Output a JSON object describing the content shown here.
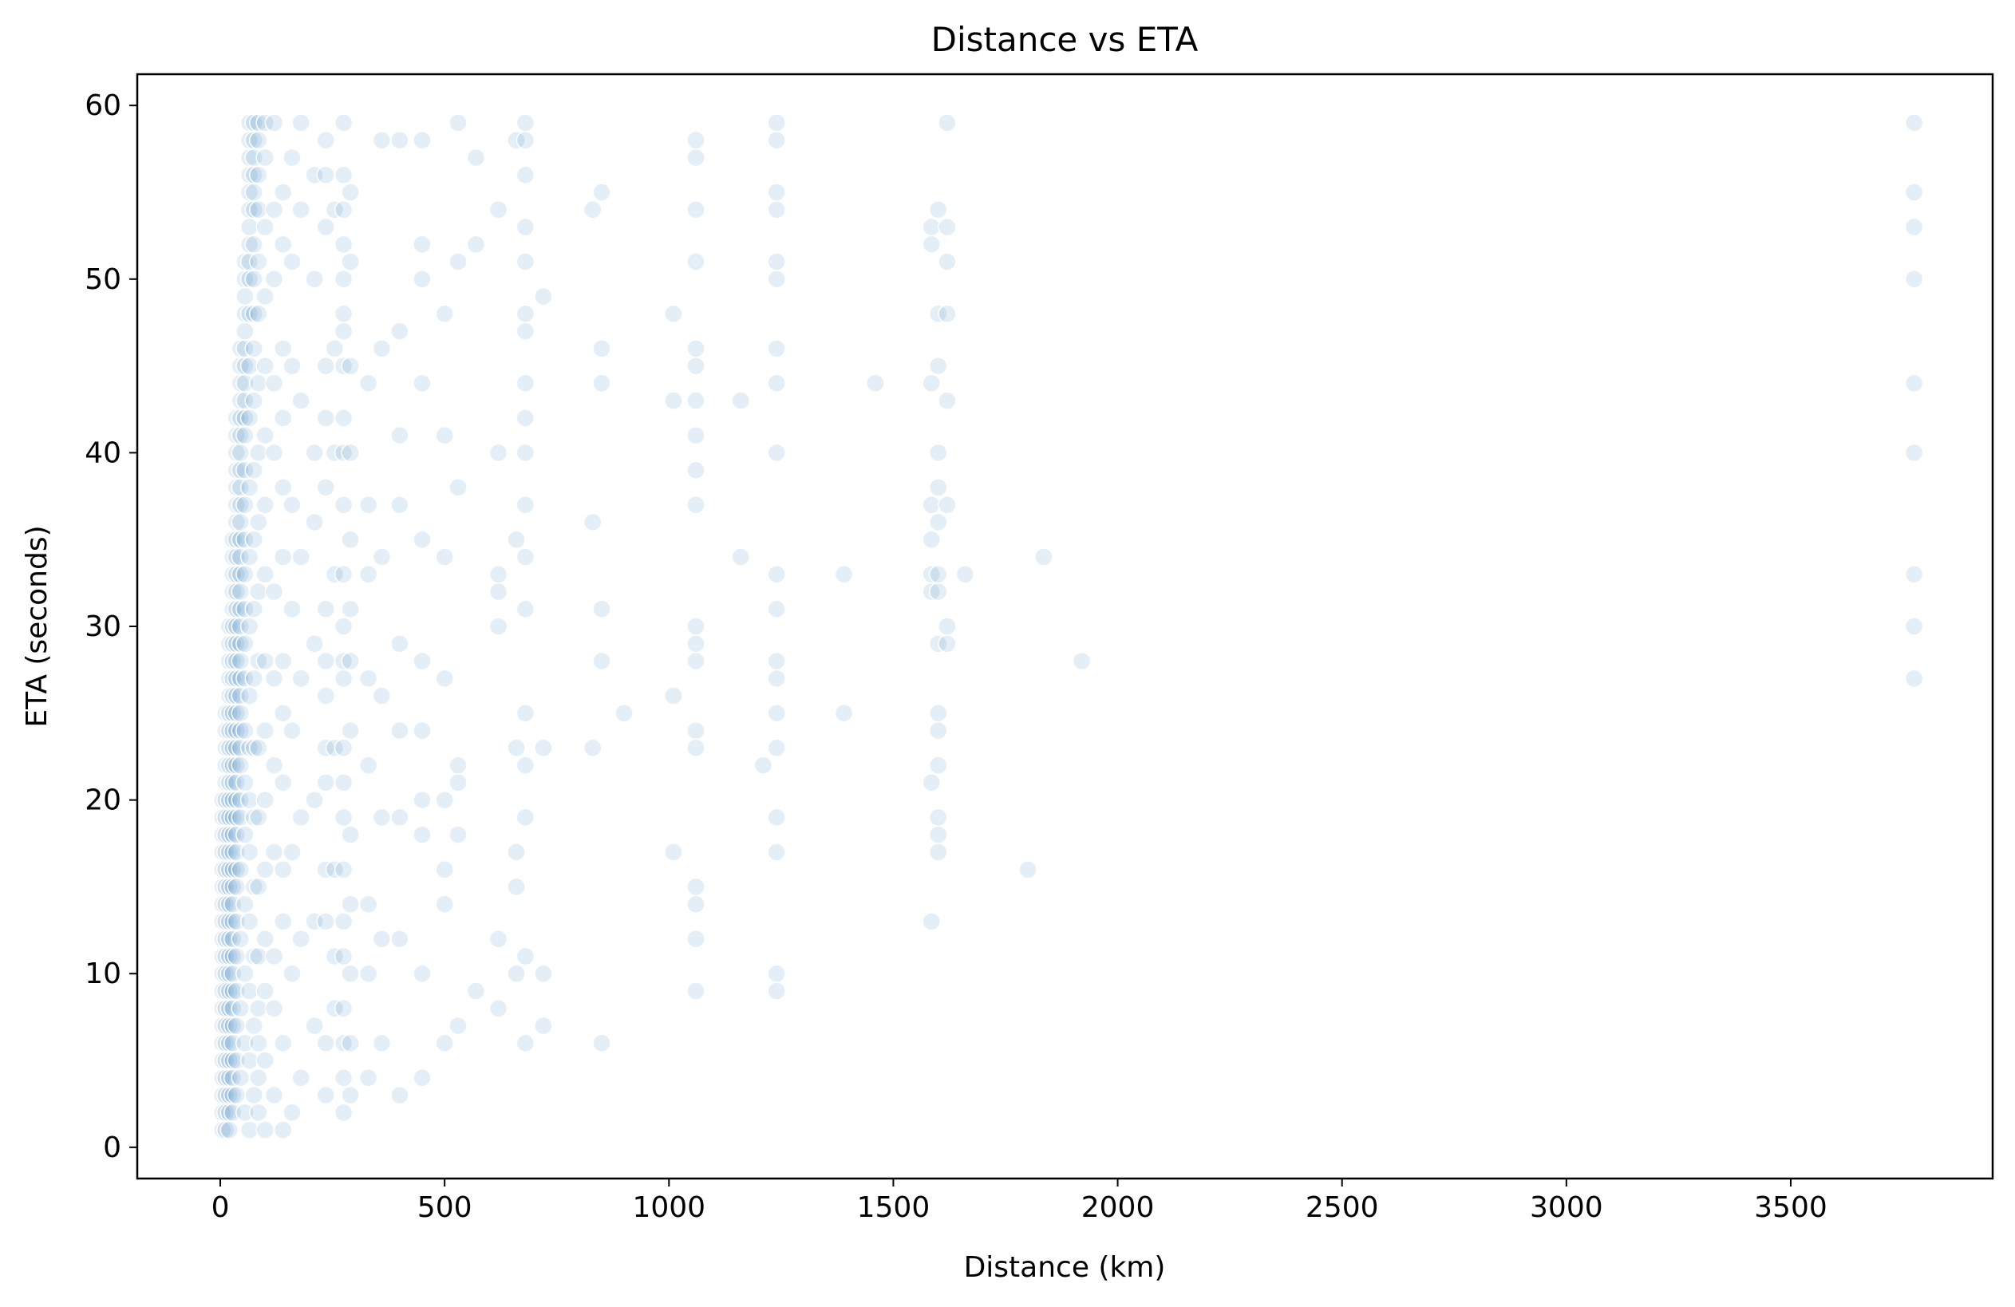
{
  "chart_data": {
    "type": "scatter",
    "title": "Distance vs ETA",
    "xlabel": "Distance (km)",
    "ylabel": "ETA (seconds)",
    "xlim": [
      -185,
      3950
    ],
    "ylim": [
      -1.8,
      61.8
    ],
    "xticks": [
      0,
      500,
      1000,
      1500,
      2000,
      2500,
      3000,
      3500
    ],
    "yticks": [
      0,
      10,
      20,
      30,
      40,
      50,
      60
    ],
    "grid": false,
    "legend": "none",
    "color": "#1f77b4",
    "marker_alpha": 0.12,
    "series": [
      {
        "x_groups": [
          {
            "x": 5,
            "y": [
              1,
              2,
              3,
              4,
              5,
              6,
              7,
              8,
              9,
              10,
              11,
              12,
              13,
              14,
              15,
              16,
              17,
              18,
              19,
              20
            ]
          },
          {
            "x": 12,
            "y": [
              1,
              2,
              3,
              4,
              5,
              6,
              7,
              8,
              9,
              10,
              11,
              12,
              13,
              14,
              15,
              16,
              17,
              18,
              19,
              20,
              21,
              22,
              23,
              24,
              25
            ]
          },
          {
            "x": 20,
            "y": [
              1,
              2,
              3,
              4,
              5,
              6,
              7,
              8,
              9,
              10,
              11,
              12,
              13,
              14,
              15,
              16,
              17,
              18,
              19,
              20,
              21,
              22,
              23,
              24,
              25,
              26,
              27,
              28,
              29,
              30
            ]
          },
          {
            "x": 28,
            "y": [
              2,
              3,
              4,
              5,
              6,
              7,
              8,
              9,
              10,
              11,
              12,
              13,
              14,
              15,
              16,
              17,
              18,
              19,
              20,
              21,
              22,
              23,
              24,
              25,
              26,
              27,
              28,
              29,
              30,
              31,
              32,
              33,
              34,
              35
            ]
          },
          {
            "x": 36,
            "y": [
              3,
              5,
              7,
              9,
              11,
              13,
              15,
              16,
              17,
              18,
              19,
              20,
              21,
              22,
              23,
              24,
              25,
              26,
              27,
              28,
              29,
              30,
              31,
              32,
              33,
              34,
              35,
              36,
              37,
              38,
              39,
              40,
              41,
              42
            ]
          },
          {
            "x": 45,
            "y": [
              4,
              8,
              12,
              16,
              19,
              20,
              22,
              23,
              24,
              25,
              26,
              27,
              28,
              29,
              30,
              31,
              32,
              33,
              34,
              35,
              36,
              37,
              38,
              39,
              40,
              41,
              42,
              43,
              44,
              45,
              46
            ]
          },
          {
            "x": 55,
            "y": [
              2,
              6,
              10,
              14,
              18,
              21,
              24,
              27,
              29,
              31,
              33,
              35,
              37,
              39,
              41,
              42,
              43,
              44,
              45,
              46,
              47,
              48,
              49,
              50,
              51
            ]
          },
          {
            "x": 65,
            "y": [
              1,
              5,
              9,
              13,
              17,
              20,
              23,
              26,
              30,
              34,
              38,
              42,
              45,
              48,
              50,
              51,
              52,
              53,
              54,
              55,
              56,
              57,
              58,
              59
            ]
          },
          {
            "x": 75,
            "y": [
              3,
              7,
              11,
              15,
              19,
              23,
              27,
              31,
              35,
              39,
              43,
              46,
              48,
              50,
              52,
              54,
              55,
              56,
              57,
              58,
              59
            ]
          },
          {
            "x": 85,
            "y": [
              2,
              4,
              6,
              8,
              11,
              15,
              19,
              23,
              28,
              32,
              36,
              40,
              44,
              48,
              51,
              54,
              56,
              58,
              59
            ]
          },
          {
            "x": 100,
            "y": [
              1,
              5,
              9,
              12,
              16,
              20,
              24,
              28,
              33,
              37,
              41,
              45,
              49,
              53,
              57,
              59
            ]
          },
          {
            "x": 120,
            "y": [
              3,
              8,
              11,
              17,
              22,
              27,
              32,
              40,
              44,
              50,
              54,
              59
            ]
          },
          {
            "x": 140,
            "y": [
              1,
              6,
              13,
              16,
              21,
              25,
              28,
              34,
              38,
              42,
              46,
              52,
              55
            ]
          },
          {
            "x": 160,
            "y": [
              2,
              10,
              17,
              24,
              31,
              37,
              45,
              51,
              57
            ]
          },
          {
            "x": 180,
            "y": [
              4,
              12,
              19,
              27,
              34,
              43,
              54,
              59
            ]
          },
          {
            "x": 210,
            "y": [
              7,
              13,
              20,
              29,
              36,
              40,
              50,
              56
            ]
          },
          {
            "x": 235,
            "y": [
              3,
              6,
              13,
              16,
              21,
              23,
              26,
              28,
              31,
              38,
              42,
              45,
              53,
              56,
              58
            ]
          },
          {
            "x": 255,
            "y": [
              8,
              11,
              16,
              23,
              33,
              40,
              46,
              54
            ]
          },
          {
            "x": 275,
            "y": [
              2,
              4,
              6,
              8,
              11,
              13,
              16,
              19,
              21,
              23,
              27,
              28,
              30,
              33,
              37,
              40,
              42,
              45,
              47,
              48,
              50,
              52,
              54,
              56,
              59
            ]
          },
          {
            "x": 290,
            "y": [
              3,
              6,
              10,
              14,
              18,
              24,
              28,
              31,
              35,
              40,
              45,
              51,
              55
            ]
          },
          {
            "x": 330,
            "y": [
              4,
              10,
              14,
              22,
              27,
              33,
              37,
              44
            ]
          },
          {
            "x": 360,
            "y": [
              6,
              12,
              19,
              26,
              34,
              46,
              58
            ]
          },
          {
            "x": 400,
            "y": [
              3,
              12,
              19,
              24,
              29,
              37,
              41,
              47,
              58
            ]
          },
          {
            "x": 450,
            "y": [
              4,
              10,
              18,
              20,
              24,
              28,
              35,
              44,
              50,
              52,
              58
            ]
          },
          {
            "x": 500,
            "y": [
              6,
              14,
              16,
              20,
              27,
              34,
              41,
              48
            ]
          },
          {
            "x": 530,
            "y": [
              7,
              18,
              21,
              22,
              38,
              51,
              59
            ]
          },
          {
            "x": 570,
            "y": [
              9,
              52,
              57
            ]
          },
          {
            "x": 620,
            "y": [
              8,
              12,
              30,
              32,
              33,
              40,
              54
            ]
          },
          {
            "x": 660,
            "y": [
              10,
              15,
              17,
              23,
              35,
              58
            ]
          },
          {
            "x": 680,
            "y": [
              6,
              11,
              19,
              22,
              25,
              31,
              34,
              37,
              40,
              42,
              44,
              47,
              48,
              51,
              53,
              56,
              58,
              59
            ]
          },
          {
            "x": 720,
            "y": [
              7,
              10,
              23,
              49
            ]
          },
          {
            "x": 830,
            "y": [
              23,
              36,
              54
            ]
          },
          {
            "x": 850,
            "y": [
              6,
              28,
              31,
              44,
              46,
              55
            ]
          },
          {
            "x": 900,
            "y": [
              25
            ]
          },
          {
            "x": 1010,
            "y": [
              17,
              26,
              43,
              48
            ]
          },
          {
            "x": 1060,
            "y": [
              9,
              12,
              14,
              15,
              23,
              24,
              28,
              29,
              30,
              37,
              39,
              41,
              43,
              45,
              46,
              51,
              54,
              57,
              58
            ]
          },
          {
            "x": 1160,
            "y": [
              34,
              43
            ]
          },
          {
            "x": 1210,
            "y": [
              22
            ]
          },
          {
            "x": 1240,
            "y": [
              9,
              10,
              17,
              19,
              23,
              25,
              27,
              28,
              31,
              33,
              40,
              44,
              46,
              50,
              51,
              54,
              55,
              58,
              59
            ]
          },
          {
            "x": 1390,
            "y": [
              25,
              33
            ]
          },
          {
            "x": 1460,
            "y": [
              44
            ]
          },
          {
            "x": 1585,
            "y": [
              13,
              21,
              32,
              33,
              35,
              37,
              44,
              52,
              53
            ]
          },
          {
            "x": 1600,
            "y": [
              17,
              18,
              19,
              22,
              24,
              25,
              29,
              32,
              33,
              36,
              38,
              40,
              45,
              48,
              54
            ]
          },
          {
            "x": 1620,
            "y": [
              29,
              30,
              37,
              43,
              48,
              51,
              53,
              59
            ]
          },
          {
            "x": 1660,
            "y": [
              33
            ]
          },
          {
            "x": 1800,
            "y": [
              16
            ]
          },
          {
            "x": 1835,
            "y": [
              34
            ]
          },
          {
            "x": 1920,
            "y": [
              28
            ]
          },
          {
            "x": 3775,
            "y": [
              27,
              30,
              33,
              40,
              44,
              50,
              53,
              55,
              59
            ]
          }
        ]
      }
    ]
  }
}
